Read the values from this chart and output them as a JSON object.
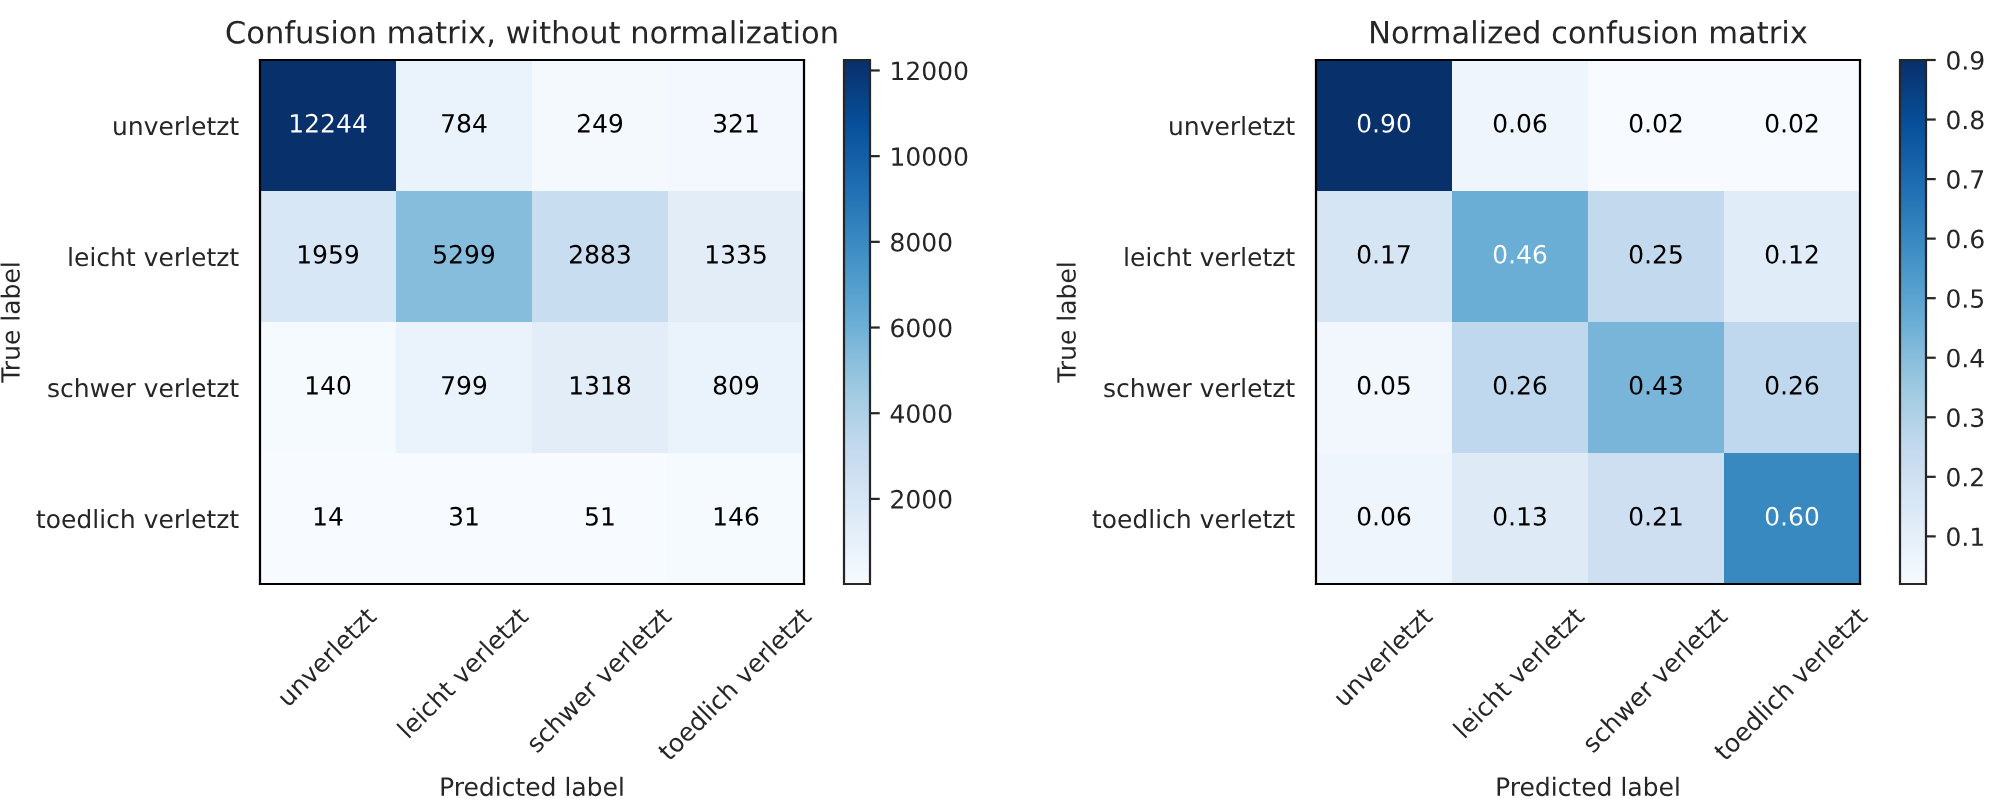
{
  "chart_data": [
    {
      "type": "heatmap",
      "title": "Confusion matrix, without normalization",
      "xlabel": "Predicted label",
      "ylabel": "True label",
      "categories": [
        "unverletzt",
        "leicht verletzt",
        "schwer verletzt",
        "toedlich verletzt"
      ],
      "y_categories": [
        "unverletzt",
        "leicht verletzt",
        "schwer verletzt",
        "toedlich verletzt"
      ],
      "cells": [
        [
          12244,
          784,
          249,
          321
        ],
        [
          1959,
          5299,
          2883,
          1335
        ],
        [
          140,
          799,
          1318,
          809
        ],
        [
          14,
          31,
          51,
          146
        ]
      ],
      "data_labels": true,
      "clim": [
        14,
        12244
      ],
      "cticks": [
        2000,
        4000,
        6000,
        8000,
        10000,
        12000
      ]
    },
    {
      "type": "heatmap",
      "title": "Normalized confusion matrix",
      "xlabel": "Predicted label",
      "ylabel": "True label",
      "categories": [
        "unverletzt",
        "leicht verletzt",
        "schwer verletzt",
        "toedlich verletzt"
      ],
      "y_categories": [
        "unverletzt",
        "leicht verletzt",
        "schwer verletzt",
        "toedlich verletzt"
      ],
      "cells": [
        [
          0.9,
          0.06,
          0.02,
          0.02
        ],
        [
          0.17,
          0.46,
          0.25,
          0.12
        ],
        [
          0.05,
          0.26,
          0.43,
          0.26
        ],
        [
          0.06,
          0.13,
          0.21,
          0.6
        ]
      ],
      "cell_labels": [
        [
          "0.90",
          "0.06",
          "0.02",
          "0.02"
        ],
        [
          "0.17",
          "0.46",
          "0.25",
          "0.12"
        ],
        [
          "0.05",
          "0.26",
          "0.43",
          "0.26"
        ],
        [
          "0.06",
          "0.13",
          "0.21",
          "0.60"
        ]
      ],
      "clim": [
        0.02,
        0.9
      ],
      "cticks": [
        0.1,
        0.2,
        0.3,
        0.4,
        0.5,
        0.6,
        0.7,
        0.8,
        0.9
      ]
    }
  ]
}
